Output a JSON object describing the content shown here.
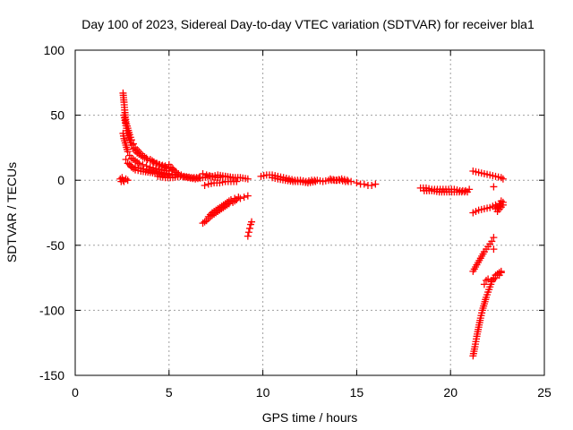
{
  "chart_data": {
    "type": "scatter",
    "title": "Day 100 of 2023, Sidereal Day-to-day VTEC variation (SDTVAR) for receiver bla1",
    "xlabel": "GPS time / hours",
    "ylabel": "SDTVAR / TECUs",
    "xlim": [
      0,
      25
    ],
    "ylim": [
      -150,
      100
    ],
    "xticks": [
      0,
      5,
      10,
      15,
      20,
      25
    ],
    "yticks": [
      -150,
      -100,
      -50,
      0,
      50,
      100
    ],
    "grid": true,
    "marker": "+",
    "color": "#ff0000",
    "series": [
      {
        "points": [
          [
            2.4,
            1
          ],
          [
            2.45,
            -1
          ],
          [
            2.5,
            2
          ],
          [
            2.55,
            0
          ],
          [
            2.6,
            -1
          ],
          [
            2.7,
            1
          ],
          [
            2.8,
            0
          ]
        ]
      },
      {
        "points": [
          [
            2.55,
            67
          ],
          [
            2.6,
            60
          ],
          [
            2.65,
            52
          ],
          [
            2.7,
            45
          ],
          [
            2.8,
            40
          ],
          [
            2.9,
            35
          ],
          [
            3.0,
            31
          ],
          [
            3.1,
            28
          ],
          [
            3.2,
            25
          ],
          [
            3.4,
            22
          ],
          [
            3.6,
            19
          ],
          [
            3.8,
            17
          ],
          [
            4.0,
            16
          ],
          [
            4.2,
            14
          ],
          [
            4.5,
            12
          ],
          [
            4.8,
            11
          ],
          [
            5.0,
            10
          ],
          [
            5.2,
            9
          ]
        ]
      },
      {
        "points": [
          [
            2.6,
            50
          ],
          [
            2.7,
            42
          ],
          [
            2.8,
            36
          ],
          [
            2.9,
            31
          ],
          [
            3.0,
            27
          ],
          [
            3.1,
            24
          ],
          [
            3.3,
            21
          ],
          [
            3.5,
            19
          ],
          [
            3.7,
            17
          ],
          [
            4.0,
            15
          ],
          [
            4.3,
            13
          ],
          [
            4.6,
            11
          ],
          [
            5.0,
            9
          ]
        ]
      },
      {
        "points": [
          [
            2.55,
            36
          ],
          [
            2.6,
            32
          ],
          [
            2.7,
            27
          ],
          [
            2.8,
            22
          ],
          [
            2.9,
            19
          ],
          [
            3.0,
            17
          ],
          [
            3.2,
            15
          ],
          [
            3.4,
            13
          ],
          [
            3.6,
            12
          ],
          [
            3.8,
            11
          ],
          [
            4.0,
            10
          ],
          [
            4.3,
            9
          ],
          [
            4.6,
            8
          ],
          [
            5.0,
            7
          ]
        ]
      },
      {
        "points": [
          [
            2.7,
            16
          ],
          [
            2.8,
            13
          ],
          [
            3.0,
            11
          ],
          [
            3.2,
            10
          ],
          [
            3.5,
            9
          ],
          [
            3.8,
            8
          ],
          [
            4.2,
            7
          ],
          [
            4.6,
            6
          ],
          [
            5.0,
            5
          ],
          [
            5.3,
            4
          ]
        ]
      },
      {
        "points": [
          [
            2.9,
            12
          ],
          [
            3.0,
            10
          ],
          [
            3.2,
            8
          ],
          [
            3.5,
            7
          ],
          [
            4.0,
            6
          ],
          [
            4.5,
            5
          ],
          [
            5.0,
            4
          ]
        ]
      },
      {
        "points": [
          [
            4.4,
            3
          ],
          [
            4.8,
            2
          ],
          [
            5.2,
            2
          ],
          [
            5.6,
            3
          ],
          [
            6.0,
            2
          ],
          [
            6.4,
            1
          ],
          [
            6.8,
            2
          ],
          [
            7.2,
            3
          ],
          [
            7.6,
            2
          ],
          [
            8.0,
            3
          ],
          [
            8.4,
            2
          ],
          [
            8.8,
            2
          ],
          [
            9.2,
            1
          ]
        ]
      },
      {
        "points": [
          [
            5.0,
            12
          ],
          [
            5.2,
            8
          ],
          [
            5.5,
            5
          ],
          [
            5.8,
            3
          ],
          [
            6.2,
            2
          ],
          [
            6.6,
            2
          ]
        ]
      },
      {
        "points": [
          [
            6.8,
            5
          ],
          [
            7.0,
            4
          ],
          [
            7.3,
            3
          ],
          [
            7.6,
            4
          ],
          [
            8.0,
            3
          ],
          [
            8.4,
            2
          ]
        ]
      },
      {
        "points": [
          [
            6.9,
            -4
          ],
          [
            7.1,
            -3
          ],
          [
            7.4,
            -2
          ],
          [
            7.7,
            -2
          ],
          [
            8.0,
            -1
          ],
          [
            8.3,
            -1
          ],
          [
            8.6,
            -1
          ]
        ]
      },
      {
        "points": [
          [
            6.8,
            -33
          ],
          [
            7.0,
            -31
          ],
          [
            7.2,
            -28
          ],
          [
            7.4,
            -26
          ],
          [
            7.6,
            -24
          ],
          [
            7.8,
            -22
          ],
          [
            8.0,
            -20
          ],
          [
            8.2,
            -18
          ],
          [
            8.4,
            -17
          ],
          [
            8.6,
            -15
          ],
          [
            8.8,
            -14
          ],
          [
            9.0,
            -13
          ],
          [
            9.2,
            -12
          ]
        ]
      },
      {
        "points": [
          [
            7.1,
            -28
          ],
          [
            7.3,
            -25
          ],
          [
            7.5,
            -23
          ],
          [
            7.7,
            -21
          ],
          [
            7.9,
            -19
          ],
          [
            8.1,
            -17
          ],
          [
            8.3,
            -15
          ],
          [
            8.5,
            -14
          ],
          [
            8.7,
            -13
          ]
        ]
      },
      {
        "points": [
          [
            9.2,
            -43
          ],
          [
            9.25,
            -40
          ],
          [
            9.3,
            -37
          ],
          [
            9.35,
            -34
          ],
          [
            9.4,
            -32
          ]
        ]
      },
      {
        "points": [
          [
            9.9,
            3
          ],
          [
            10.2,
            4
          ],
          [
            10.5,
            4
          ],
          [
            10.8,
            3
          ],
          [
            11.1,
            2
          ],
          [
            11.4,
            1
          ],
          [
            11.7,
            0
          ],
          [
            12.0,
            0
          ],
          [
            12.3,
            -1
          ],
          [
            12.6,
            0
          ],
          [
            12.9,
            0
          ],
          [
            13.2,
            -1
          ],
          [
            13.5,
            0
          ],
          [
            13.8,
            0
          ],
          [
            14.1,
            0
          ],
          [
            14.4,
            -1
          ],
          [
            14.7,
            -1
          ]
        ]
      },
      {
        "points": [
          [
            10.5,
            2
          ],
          [
            10.8,
            1
          ],
          [
            11.2,
            0
          ],
          [
            11.6,
            -1
          ],
          [
            12.0,
            -1
          ],
          [
            12.4,
            -2
          ],
          [
            12.8,
            -1
          ]
        ]
      },
      {
        "points": [
          [
            13.6,
            1
          ],
          [
            13.9,
            0
          ],
          [
            14.2,
            1
          ],
          [
            14.5,
            0
          ]
        ]
      },
      {
        "points": [
          [
            15.0,
            -2
          ],
          [
            15.2,
            -3
          ],
          [
            15.4,
            -3
          ],
          [
            15.6,
            -4
          ],
          [
            15.8,
            -4
          ],
          [
            16.0,
            -3
          ]
        ]
      },
      {
        "points": [
          [
            18.4,
            -6
          ],
          [
            18.7,
            -6
          ],
          [
            19.0,
            -7
          ],
          [
            19.3,
            -7
          ],
          [
            19.6,
            -7
          ],
          [
            19.9,
            -7
          ],
          [
            20.2,
            -7
          ],
          [
            20.5,
            -8
          ],
          [
            20.8,
            -8
          ],
          [
            21.0,
            -7
          ]
        ]
      },
      {
        "points": [
          [
            18.6,
            -8
          ],
          [
            19.0,
            -8
          ],
          [
            19.4,
            -9
          ],
          [
            19.8,
            -9
          ],
          [
            20.2,
            -9
          ],
          [
            20.6,
            -9
          ],
          [
            20.9,
            -9
          ]
        ]
      },
      {
        "points": [
          [
            21.2,
            7
          ],
          [
            21.5,
            6
          ],
          [
            21.8,
            5
          ],
          [
            22.1,
            4
          ],
          [
            22.4,
            3
          ],
          [
            22.7,
            2
          ],
          [
            22.8,
            1
          ]
        ]
      },
      {
        "points": [
          [
            22.3,
            -5
          ]
        ]
      },
      {
        "points": [
          [
            21.2,
            -25
          ],
          [
            21.5,
            -23
          ],
          [
            21.8,
            -22
          ],
          [
            22.1,
            -21
          ],
          [
            22.4,
            -19
          ],
          [
            22.6,
            -18
          ],
          [
            22.8,
            -17
          ]
        ]
      },
      {
        "points": [
          [
            22.4,
            -22
          ],
          [
            22.6,
            -20
          ],
          [
            22.8,
            -19
          ],
          [
            22.5,
            -24
          ],
          [
            22.7,
            -16
          ]
        ]
      },
      {
        "points": [
          [
            21.2,
            -70
          ],
          [
            21.4,
            -65
          ],
          [
            21.6,
            -60
          ],
          [
            21.8,
            -55
          ],
          [
            22.0,
            -51
          ],
          [
            22.2,
            -47
          ],
          [
            22.3,
            -44
          ]
        ]
      },
      {
        "points": [
          [
            22.3,
            -53
          ]
        ]
      },
      {
        "points": [
          [
            21.2,
            -135
          ],
          [
            21.3,
            -128
          ],
          [
            21.4,
            -120
          ],
          [
            21.5,
            -113
          ],
          [
            21.6,
            -106
          ],
          [
            21.7,
            -100
          ],
          [
            21.8,
            -95
          ],
          [
            21.9,
            -90
          ],
          [
            22.0,
            -86
          ],
          [
            22.1,
            -82
          ],
          [
            22.2,
            -78
          ],
          [
            22.3,
            -75
          ],
          [
            22.4,
            -73
          ]
        ]
      },
      {
        "points": [
          [
            21.8,
            -80
          ],
          [
            21.9,
            -77
          ],
          [
            22.0,
            -76
          ],
          [
            22.2,
            -77
          ],
          [
            22.4,
            -75
          ],
          [
            22.5,
            -72
          ],
          [
            22.6,
            -71
          ],
          [
            22.7,
            -70
          ]
        ]
      },
      {
        "points": [
          [
            22.6,
            -73
          ],
          [
            22.7,
            -71
          ]
        ]
      }
    ]
  }
}
